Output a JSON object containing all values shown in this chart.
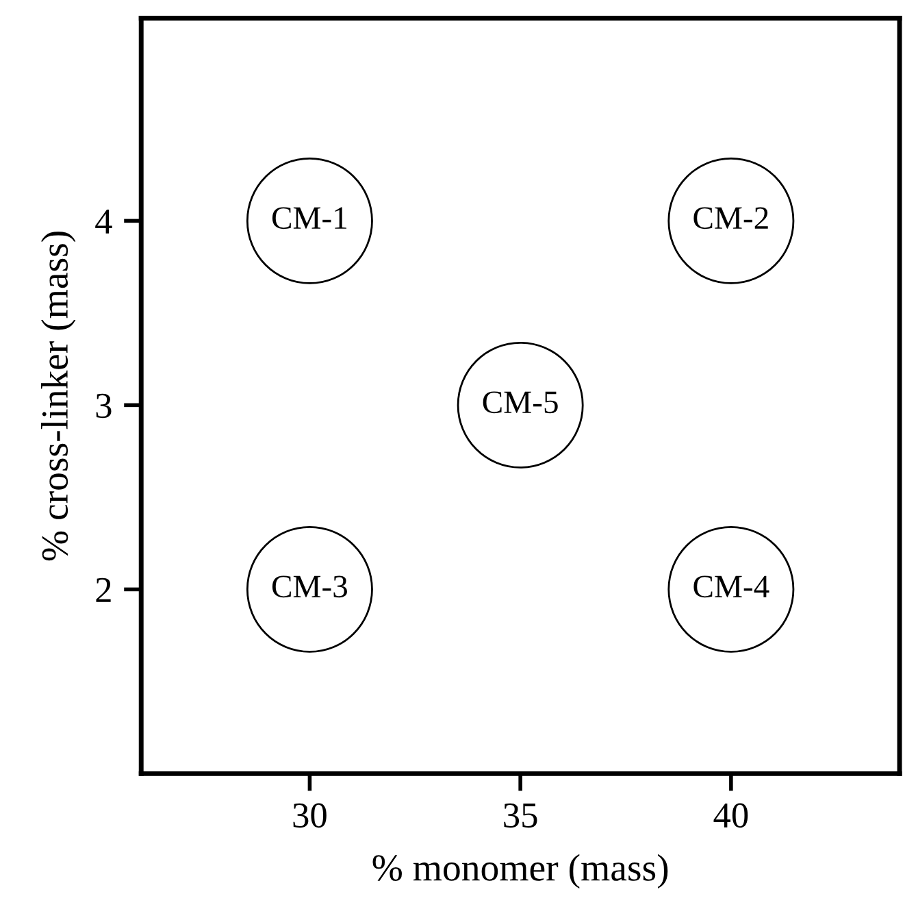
{
  "chart_data": {
    "type": "scatter",
    "xlabel": "% monomer (mass)",
    "ylabel": "% cross-linker (mass)",
    "x": [
      30,
      40,
      35,
      30,
      40
    ],
    "values": [
      4,
      4,
      3,
      2,
      2
    ],
    "color": "#000000",
    "marker": "circle",
    "grid": false,
    "legend": false,
    "xlim": [
      26,
      44
    ],
    "ylim": [
      1,
      5.1
    ],
    "xticks": [
      30,
      35,
      40
    ],
    "yticks": [
      2,
      3,
      4
    ],
    "annotations": [
      {
        "text": "CM-1",
        "x": 30,
        "y": 4
      },
      {
        "text": "CM-2",
        "x": 40,
        "y": 4
      },
      {
        "text": "CM-5",
        "x": 35,
        "y": 3
      },
      {
        "text": "CM-3",
        "x": 30,
        "y": 2
      },
      {
        "text": "CM-4",
        "x": 40,
        "y": 2
      }
    ]
  }
}
